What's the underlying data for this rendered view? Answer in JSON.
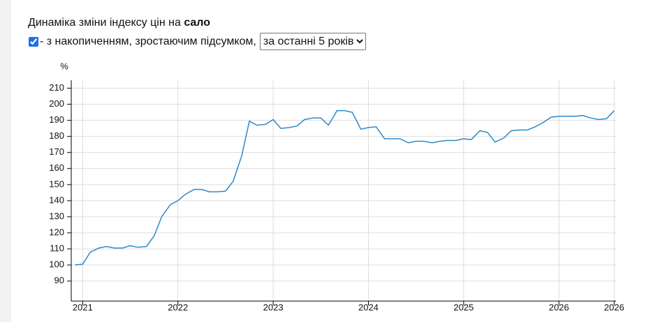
{
  "header": {
    "title": "Динаміка зміни індексу цін на",
    "product": "сало"
  },
  "controls": {
    "checkbox_label": "- з накопиченням, зростаючим підсумком,",
    "period": "за останні 5 років"
  },
  "chart_data": {
    "type": "line",
    "y_label": "%",
    "color": "#2d8ac7",
    "grid": true,
    "x": [
      2020.92,
      2021.0,
      2021.08,
      2021.17,
      2021.25,
      2021.33,
      2021.42,
      2021.5,
      2021.58,
      2021.67,
      2021.75,
      2021.83,
      2021.92,
      2022.0,
      2022.08,
      2022.17,
      2022.25,
      2022.33,
      2022.42,
      2022.5,
      2022.58,
      2022.67,
      2022.75,
      2022.83,
      2022.92,
      2023.0,
      2023.08,
      2023.17,
      2023.25,
      2023.33,
      2023.42,
      2023.5,
      2023.58,
      2023.67,
      2023.75,
      2023.83,
      2023.92,
      2024.0,
      2024.08,
      2024.17,
      2024.25,
      2024.33,
      2024.42,
      2024.5,
      2024.58,
      2024.67,
      2024.75,
      2024.83,
      2024.92,
      2025.0,
      2025.08,
      2025.17,
      2025.25,
      2025.33,
      2025.42,
      2025.5,
      2025.58,
      2025.67,
      2025.75,
      2025.83,
      2025.92,
      2026.0,
      2026.08,
      2026.17,
      2026.25,
      2026.33,
      2026.42,
      2026.5,
      2026.58
    ],
    "values": [
      100,
      100.5,
      108,
      110.5,
      111.5,
      110.5,
      110.5,
      112,
      111,
      111.5,
      118,
      130,
      137.5,
      140,
      144,
      147,
      147,
      145.5,
      145.5,
      146,
      152,
      168,
      189.5,
      187,
      187.5,
      190.5,
      185,
      185.5,
      186.5,
      190.5,
      191.5,
      191.5,
      187,
      196,
      196,
      195,
      184.5,
      185.5,
      186,
      178.5,
      178.5,
      178.5,
      176,
      177,
      177,
      176,
      177,
      177.5,
      177.5,
      178.5,
      178,
      183.5,
      182.5,
      176.5,
      179,
      183.5,
      184,
      184,
      186,
      188.5,
      192,
      192.5,
      192.5,
      192.5,
      193,
      191.5,
      190.5,
      191,
      196
    ],
    "xlim": [
      2020.88,
      2026.6
    ],
    "xticks": [
      2021,
      2022,
      2023,
      2024,
      2025,
      2026,
      {
        "value": 2026.58,
        "label": "2026"
      }
    ],
    "ylim": [
      77.5,
      215
    ],
    "yticks": [
      90,
      100,
      110,
      120,
      130,
      140,
      150,
      160,
      170,
      180,
      190,
      200,
      210
    ]
  }
}
